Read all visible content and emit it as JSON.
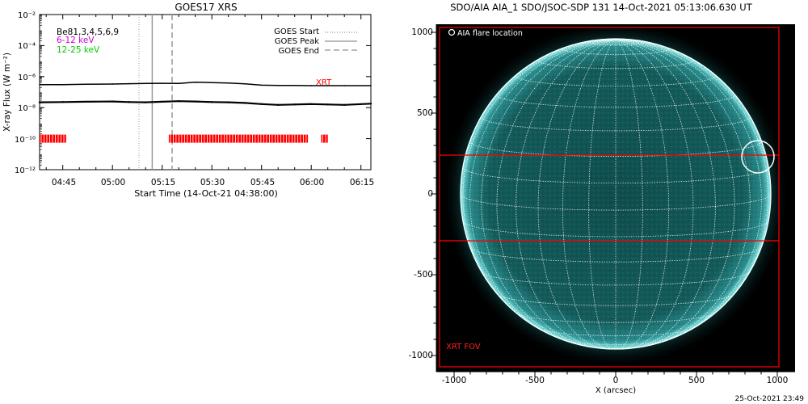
{
  "colors": {
    "xrt_mark": "#ff0000",
    "band_6_12": "#cc00cc",
    "band_12_25": "#00cc00",
    "disk": "#0e4a4a",
    "disk_limb": "#7fe6e6",
    "aia_background": "#000000"
  },
  "chart_data": [
    {
      "type": "line",
      "title": "GOES17 XRS",
      "xlabel": "Start Time (14-Oct-21 04:38:00)",
      "ylabel": "X-ray Flux (W m⁻²)",
      "ylim": [
        1e-12,
        0.01
      ],
      "yscale": "log",
      "xlim": [
        "04:38",
        "06:18"
      ],
      "x_ticks": [
        "04:45",
        "05:00",
        "05:15",
        "05:30",
        "05:45",
        "06:00",
        "06:15"
      ],
      "y_ticks": [
        "10⁻¹²",
        "10⁻¹⁰",
        "10⁻⁸",
        "10⁻⁶",
        "10⁻⁴",
        "10⁻²"
      ],
      "x_tick_minutes": [
        45,
        60,
        75,
        90,
        105,
        120,
        135
      ],
      "band_labels": [
        {
          "text": "Be81,3,4,5,6,9",
          "color": "#000000"
        },
        {
          "text": "6-12 keV",
          "color": "#cc00cc"
        },
        {
          "text": "12-25 keV",
          "color": "#00cc00"
        }
      ],
      "legend": {
        "placement": "top-right",
        "entries": [
          {
            "label": "GOES Start",
            "style": "dotted"
          },
          {
            "label": "GOES Peak",
            "style": "solid"
          },
          {
            "label": "GOES End",
            "style": "dashed"
          }
        ]
      },
      "event_lines": {
        "start": "05:08",
        "peak": "05:12",
        "end": "05:18"
      },
      "series": [
        {
          "name": "XRT",
          "x": [
            "04:38",
            "04:45",
            "04:52",
            "05:00",
            "05:05",
            "05:10",
            "05:15",
            "05:20",
            "05:25",
            "05:30",
            "05:35",
            "05:40",
            "05:45",
            "05:50",
            "05:55",
            "06:00",
            "06:05",
            "06:10",
            "06:18"
          ],
          "values": [
            3e-07,
            3e-07,
            3.2e-07,
            3.3e-07,
            3.5e-07,
            3.6e-07,
            3.7e-07,
            3.6e-07,
            4.3e-07,
            4.1e-07,
            3.9e-07,
            3.4e-07,
            2.8e-07,
            2.7e-07,
            2.7e-07,
            2.6e-07,
            2.6e-07,
            2.6e-07,
            2.6e-07
          ]
        },
        {
          "name": "",
          "x": [
            "04:38",
            "04:45",
            "04:52",
            "05:00",
            "05:05",
            "05:10",
            "05:15",
            "05:20",
            "05:25",
            "05:30",
            "05:35",
            "05:40",
            "05:45",
            "05:50",
            "05:55",
            "06:00",
            "06:05",
            "06:10",
            "06:18"
          ],
          "values": [
            2.2e-08,
            2.3e-08,
            2.4e-08,
            2.5e-08,
            2.3e-08,
            2.2e-08,
            2.4e-08,
            2.6e-08,
            2.5e-08,
            2.3e-08,
            2.2e-08,
            2e-08,
            1.7e-08,
            1.5e-08,
            1.6e-08,
            1.7e-08,
            1.6e-08,
            1.5e-08,
            1.8e-08
          ]
        }
      ],
      "xrt_label": "XRT",
      "xrt_obs_segments": [
        {
          "start": "04:38",
          "end": "04:46"
        },
        {
          "start": "05:17",
          "end": "05:59"
        },
        {
          "start": "06:03",
          "end": "06:05"
        }
      ],
      "xrt_obs_level": 1e-10
    },
    {
      "type": "image",
      "title": "SDO/AIA AIA_1 SDO/JSOC-SDP 131 14-Oct-2021 05:13:06.630 UT",
      "xlabel": "X (arcsec)",
      "ylabel": "",
      "xlim": [
        -1100,
        1100
      ],
      "ylim": [
        -1100,
        1100
      ],
      "x_ticks": [
        -1000,
        -500,
        0,
        500,
        1000
      ],
      "y_ticks": [
        -1000,
        -500,
        0,
        500,
        1000
      ],
      "solar_radius_arcsec": 960,
      "grid_spacing_deg": 10,
      "flare": {
        "label": "AIA flare location",
        "x": 880,
        "y": 230,
        "radius": 100
      },
      "xrt_fov": {
        "label": "XRT FOV",
        "outer": {
          "x0": -1090,
          "x1": 1010,
          "y0": -1070,
          "y1": 1030
        },
        "strip": {
          "y0": -290,
          "y1": 240
        }
      },
      "footer_timestamp": "25-Oct-2021 23:49"
    }
  ]
}
